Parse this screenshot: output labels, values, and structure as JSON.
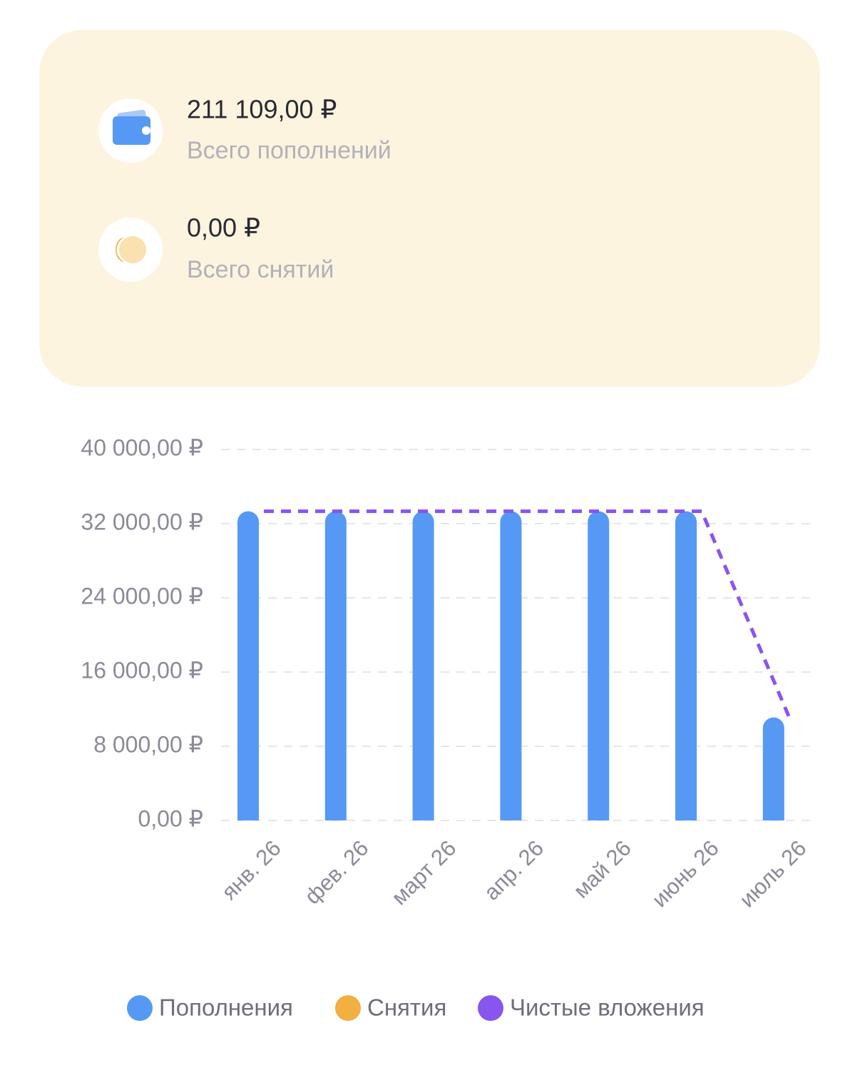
{
  "summary": {
    "items": [
      {
        "amount": "211 109,00 ₽",
        "label": "Всего пополнений"
      },
      {
        "amount": "0,00 ₽",
        "label": "Всего снятий"
      }
    ]
  },
  "chart_data": {
    "type": "bar",
    "categories": [
      "янв. 26",
      "фев. 26",
      "март 26",
      "апр. 26",
      "май 26",
      "июнь 26",
      "июль 26"
    ],
    "series": [
      {
        "name": "Пополнения",
        "color": "#5599f5",
        "values": [
          33333.33,
          33333.33,
          33333.33,
          33333.33,
          33333.33,
          33333.33,
          11109
        ]
      },
      {
        "name": "Снятия",
        "color": "#f2b040",
        "values": [
          0,
          0,
          0,
          0,
          0,
          0,
          0
        ]
      },
      {
        "name": "Чистые вложения",
        "color": "#8855ee",
        "type": "line",
        "values": [
          33333.33,
          33333.33,
          33333.33,
          33333.33,
          33333.33,
          33333.33,
          11109
        ]
      }
    ],
    "ylim": [
      0,
      40000
    ],
    "yticks": [
      {
        "value": 0,
        "label": "0,00 ₽"
      },
      {
        "value": 8000,
        "label": "8 000,00 ₽"
      },
      {
        "value": 16000,
        "label": "16 000,00 ₽"
      },
      {
        "value": 24000,
        "label": "24 000,00 ₽"
      },
      {
        "value": 32000,
        "label": "32 000,00 ₽"
      },
      {
        "value": 40000,
        "label": "40 000,00 ₽"
      }
    ],
    "grid": true
  }
}
